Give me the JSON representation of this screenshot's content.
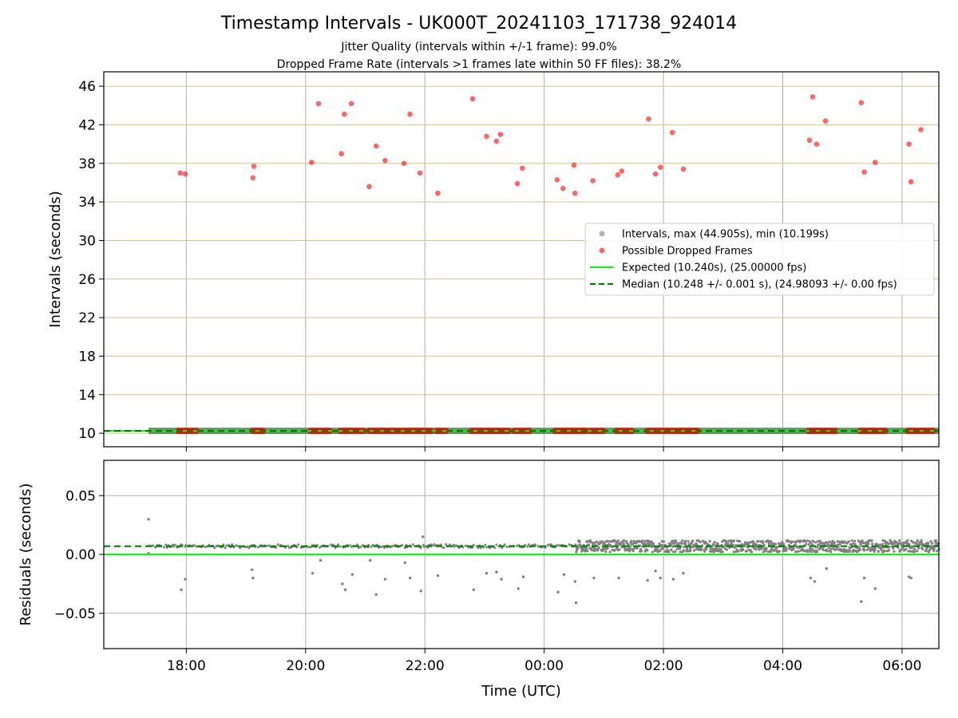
{
  "title": "Timestamp Intervals - UK000T_20241103_171738_924014",
  "subtitle_lines": [
    "Jitter Quality (intervals within +/-1 frame): 99.0%",
    "Dropped Frame Rate (intervals >1 frames late within 50 FF files): 38.2%"
  ],
  "colors": {
    "interval_points": "#808080",
    "dropped_points": "#ff0000",
    "expected_line": "#00ff00",
    "median_line": "#008000",
    "interval_band": "#5a8a5a",
    "y_grid": "#d8c380",
    "x_grid": "#b0b0b0"
  },
  "chart_data": [
    {
      "type": "scatter",
      "panel": "top",
      "xlabel": "",
      "ylabel": "Intervals (seconds)",
      "x_ticks": [
        "18:00",
        "20:00",
        "22:00",
        "00:00",
        "02:00",
        "04:00",
        "06:00"
      ],
      "y_ticks": [
        10,
        14,
        18,
        22,
        26,
        30,
        34,
        38,
        42,
        46
      ],
      "ylim": [
        8.6,
        47.5
      ],
      "x_range_hours": [
        "2024-11-03 16:37",
        "2024-11-04 06:37"
      ],
      "grid": "on",
      "legend_placement": "center-right",
      "legend": [
        "Intervals, max (44.905s), min (10.199s)",
        "Possible Dropped Frames",
        "Expected (10.240s), (25.00000 fps)",
        "Median (10.248 +/- 0.001 s), (24.98093 +/- 0.00 fps)"
      ],
      "series": [
        {
          "name": "Intervals, max (44.905s), min (10.199s)",
          "description_value": 10.248,
          "x_span": [
            "2024-11-03 17:22",
            "2024-11-04 06:37"
          ]
        },
        {
          "name": "Possible Dropped Frames",
          "points": [
            [
              "2024-11-03 17:54",
              37.0
            ],
            [
              "2024-11-03 17:59",
              36.9
            ],
            [
              "2024-11-03 19:07",
              36.5
            ],
            [
              "2024-11-03 19:08",
              37.7
            ],
            [
              "2024-11-03 20:06",
              38.1
            ],
            [
              "2024-11-03 20:13",
              44.2
            ],
            [
              "2024-11-03 20:36",
              39.0
            ],
            [
              "2024-11-03 20:39",
              43.1
            ],
            [
              "2024-11-03 20:46",
              44.2
            ],
            [
              "2024-11-03 21:04",
              35.6
            ],
            [
              "2024-11-03 21:11",
              39.8
            ],
            [
              "2024-11-03 21:20",
              38.3
            ],
            [
              "2024-11-03 21:39",
              38.0
            ],
            [
              "2024-11-03 21:45",
              43.1
            ],
            [
              "2024-11-03 21:55",
              37.0
            ],
            [
              "2024-11-03 22:13",
              34.9
            ],
            [
              "2024-11-03 22:48",
              44.7
            ],
            [
              "2024-11-03 23:02",
              40.8
            ],
            [
              "2024-11-03 23:12",
              40.3
            ],
            [
              "2024-11-03 23:16",
              41.0
            ],
            [
              "2024-11-03 23:33",
              35.9
            ],
            [
              "2024-11-03 23:38",
              37.5
            ],
            [
              "2024-11-04 00:13",
              36.3
            ],
            [
              "2024-11-04 00:19",
              35.4
            ],
            [
              "2024-11-04 00:30",
              37.8
            ],
            [
              "2024-11-04 00:31",
              34.9
            ],
            [
              "2024-11-04 00:49",
              36.2
            ],
            [
              "2024-11-04 01:14",
              36.8
            ],
            [
              "2024-11-04 01:18",
              37.2
            ],
            [
              "2024-11-04 01:45",
              42.6
            ],
            [
              "2024-11-04 01:52",
              36.9
            ],
            [
              "2024-11-04 01:57",
              37.6
            ],
            [
              "2024-11-04 02:09",
              41.2
            ],
            [
              "2024-11-04 02:20",
              37.4
            ],
            [
              "2024-11-04 04:27",
              40.4
            ],
            [
              "2024-11-04 04:30",
              44.9
            ],
            [
              "2024-11-04 04:34",
              40.0
            ],
            [
              "2024-11-04 04:43",
              42.4
            ],
            [
              "2024-11-04 05:19",
              44.3
            ],
            [
              "2024-11-04 05:22",
              37.1
            ],
            [
              "2024-11-04 05:33",
              38.1
            ],
            [
              "2024-11-04 06:07",
              40.0
            ],
            [
              "2024-11-04 06:09",
              36.1
            ],
            [
              "2024-11-04 06:19",
              41.5
            ]
          ],
          "low_value": 10.248,
          "low_clusters": [
            [
              "2024-11-03 17:52",
              "2024-11-03 18:10"
            ],
            [
              "2024-11-03 19:07",
              "2024-11-03 19:17"
            ],
            [
              "2024-11-03 20:05",
              "2024-11-03 20:24"
            ],
            [
              "2024-11-03 20:35",
              "2024-11-03 20:58"
            ],
            [
              "2024-11-03 21:04",
              "2024-11-03 21:34"
            ],
            [
              "2024-11-03 21:38",
              "2024-11-03 22:06"
            ],
            [
              "2024-11-03 22:12",
              "2024-11-03 22:21"
            ],
            [
              "2024-11-03 22:47",
              "2024-11-03 23:24"
            ],
            [
              "2024-11-03 23:30",
              "2024-11-03 23:45"
            ],
            [
              "2024-11-04 00:11",
              "2024-11-04 00:27"
            ],
            [
              "2024-11-04 00:29",
              "2024-11-04 00:42"
            ],
            [
              "2024-11-04 00:47",
              "2024-11-04 00:59"
            ],
            [
              "2024-11-04 01:13",
              "2024-11-04 01:28"
            ],
            [
              "2024-11-04 01:44",
              "2024-11-04 02:34"
            ],
            [
              "2024-11-04 04:26",
              "2024-11-04 04:53"
            ],
            [
              "2024-11-04 05:18",
              "2024-11-04 05:43"
            ],
            [
              "2024-11-04 06:06",
              "2024-11-04 06:31"
            ]
          ]
        },
        {
          "name": "Expected (10.240s), (25.00000 fps)",
          "value": 10.24
        },
        {
          "name": "Median (10.248 +/- 0.001 s), (24.98093 +/- 0.00 fps)",
          "value": 10.248
        }
      ]
    },
    {
      "type": "scatter",
      "panel": "bottom",
      "xlabel": "Time (UTC)",
      "ylabel": "Residuals (seconds)",
      "x_ticks": [
        "18:00",
        "20:00",
        "22:00",
        "00:00",
        "02:00",
        "04:00",
        "06:00"
      ],
      "y_ticks": [
        -0.05,
        0.0,
        0.05
      ],
      "y_tick_labels": [
        "−0.05",
        "0.00",
        "0.05"
      ],
      "ylim": [
        -0.08,
        0.08
      ],
      "grid": "on",
      "expected_residual": 0.0,
      "median_residual": 0.007,
      "band_sparse": {
        "x_span": [
          "2024-11-03 17:22",
          "2024-11-04 00:32"
        ],
        "center": 0.007,
        "spread": 0.0015
      },
      "band_dense": {
        "x_span": [
          "2024-11-04 00:32",
          "2024-11-04 06:37"
        ],
        "center": 0.007,
        "spread": 0.005
      },
      "outliers": [
        [
          "2024-11-03 17:22",
          0.03
        ],
        [
          "2024-11-03 17:22",
          0.001
        ],
        [
          "2024-11-03 17:55",
          -0.03
        ],
        [
          "2024-11-03 17:59",
          -0.021
        ],
        [
          "2024-11-03 19:06",
          -0.013
        ],
        [
          "2024-11-03 19:07",
          -0.02
        ],
        [
          "2024-11-03 20:07",
          -0.016
        ],
        [
          "2024-11-03 20:15",
          -0.005
        ],
        [
          "2024-11-03 20:37",
          -0.025
        ],
        [
          "2024-11-03 20:40",
          -0.03
        ],
        [
          "2024-11-03 20:47",
          -0.017
        ],
        [
          "2024-11-03 21:05",
          -0.005
        ],
        [
          "2024-11-03 21:11",
          -0.034
        ],
        [
          "2024-11-03 21:20",
          -0.021
        ],
        [
          "2024-11-03 21:40",
          -0.007
        ],
        [
          "2024-11-03 21:45",
          -0.02
        ],
        [
          "2024-11-03 21:56",
          -0.031
        ],
        [
          "2024-11-03 21:58",
          0.015
        ],
        [
          "2024-11-03 22:13",
          -0.018
        ],
        [
          "2024-11-03 22:49",
          -0.03
        ],
        [
          "2024-11-03 23:02",
          -0.016
        ],
        [
          "2024-11-03 23:12",
          -0.015
        ],
        [
          "2024-11-03 23:17",
          -0.021
        ],
        [
          "2024-11-03 23:34",
          -0.029
        ],
        [
          "2024-11-03 23:39",
          -0.019
        ],
        [
          "2024-11-04 00:14",
          -0.032
        ],
        [
          "2024-11-04 00:20",
          -0.017
        ],
        [
          "2024-11-04 00:31",
          -0.023
        ],
        [
          "2024-11-04 00:32",
          -0.041
        ],
        [
          "2024-11-04 00:50",
          -0.02
        ],
        [
          "2024-11-04 01:15",
          -0.02
        ],
        [
          "2024-11-04 01:44",
          -0.022
        ],
        [
          "2024-11-04 01:52",
          -0.014
        ],
        [
          "2024-11-04 01:57",
          -0.02
        ],
        [
          "2024-11-04 02:10",
          -0.021
        ],
        [
          "2024-11-04 02:20",
          -0.016
        ],
        [
          "2024-11-04 04:28",
          -0.02
        ],
        [
          "2024-11-04 04:32",
          -0.023
        ],
        [
          "2024-11-04 04:44",
          -0.012
        ],
        [
          "2024-11-04 05:19",
          -0.04
        ],
        [
          "2024-11-04 05:22",
          -0.02
        ],
        [
          "2024-11-04 05:33",
          -0.029
        ],
        [
          "2024-11-04 06:07",
          -0.019
        ],
        [
          "2024-11-04 06:09",
          -0.02
        ]
      ]
    }
  ]
}
